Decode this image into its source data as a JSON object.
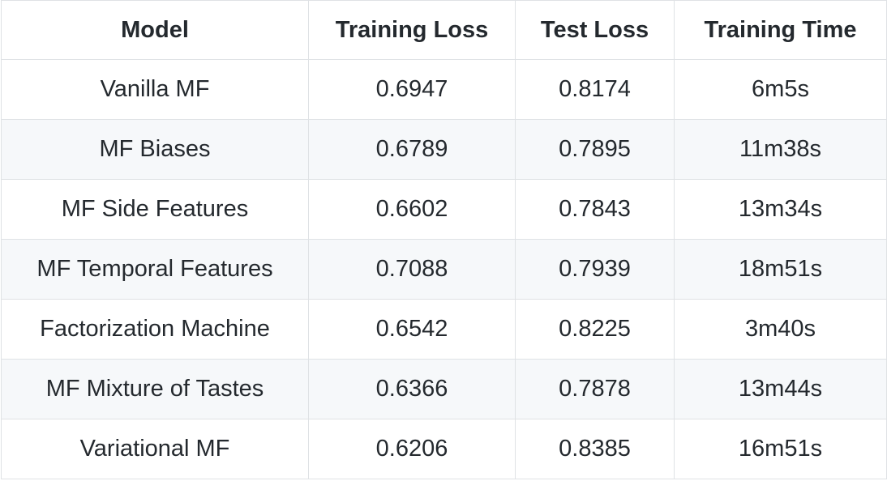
{
  "table": {
    "headers": [
      "Model",
      "Training Loss",
      "Test Loss",
      "Training Time"
    ],
    "rows": [
      [
        "Vanilla MF",
        "0.6947",
        "0.8174",
        "6m5s"
      ],
      [
        "MF Biases",
        "0.6789",
        "0.7895",
        "11m38s"
      ],
      [
        "MF Side Features",
        "0.6602",
        "0.7843",
        "13m34s"
      ],
      [
        "MF Temporal Features",
        "0.7088",
        "0.7939",
        "18m51s"
      ],
      [
        "Factorization Machine",
        "0.6542",
        "0.8225",
        "3m40s"
      ],
      [
        "MF Mixture of Tastes",
        "0.6366",
        "0.7878",
        "13m44s"
      ],
      [
        "Variational MF",
        "0.6206",
        "0.8385",
        "16m51s"
      ]
    ]
  },
  "colors": {
    "border": "#dfe2e5",
    "stripe": "#f6f8fa",
    "text": "#24292e"
  }
}
